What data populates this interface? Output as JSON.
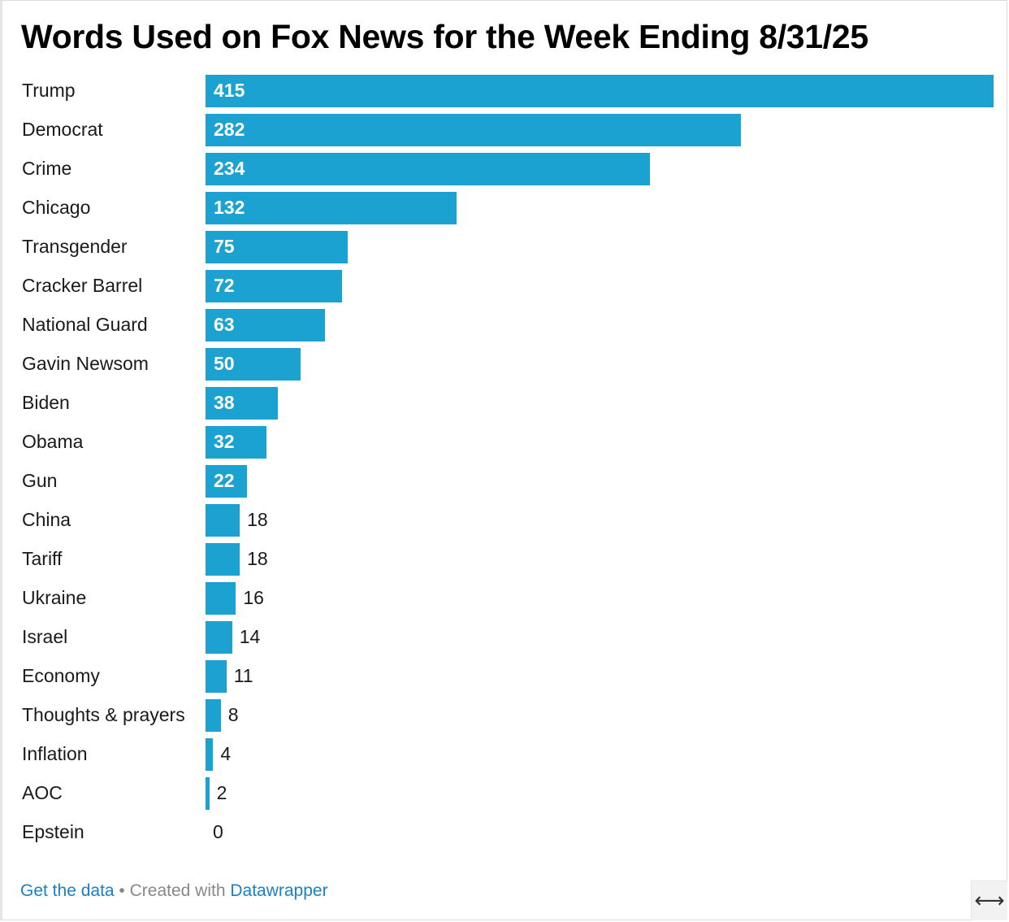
{
  "chart_data": {
    "type": "bar",
    "orientation": "horizontal",
    "title": "Words Used on Fox News for the Week Ending 8/31/25",
    "categories": [
      "Trump",
      "Democrat",
      "Crime",
      "Chicago",
      "Transgender",
      "Cracker Barrel",
      "National Guard",
      "Gavin Newsom",
      "Biden",
      "Obama",
      "Gun",
      "China",
      "Tariff",
      "Ukraine",
      "Israel",
      "Economy",
      "Thoughts & prayers",
      "Inflation",
      "AOC",
      "Epstein"
    ],
    "values": [
      415,
      282,
      234,
      132,
      75,
      72,
      63,
      50,
      38,
      32,
      22,
      18,
      18,
      16,
      14,
      11,
      8,
      4,
      2,
      0
    ],
    "xlim": [
      0,
      415
    ],
    "bar_color": "#1ba2d0",
    "grid": false,
    "data_labels": true
  },
  "footer": {
    "get_data": "Get the data",
    "separator": " • Created with ",
    "tool": "Datawrapper"
  },
  "icons": {
    "resize": "horizontal-resize-icon"
  }
}
